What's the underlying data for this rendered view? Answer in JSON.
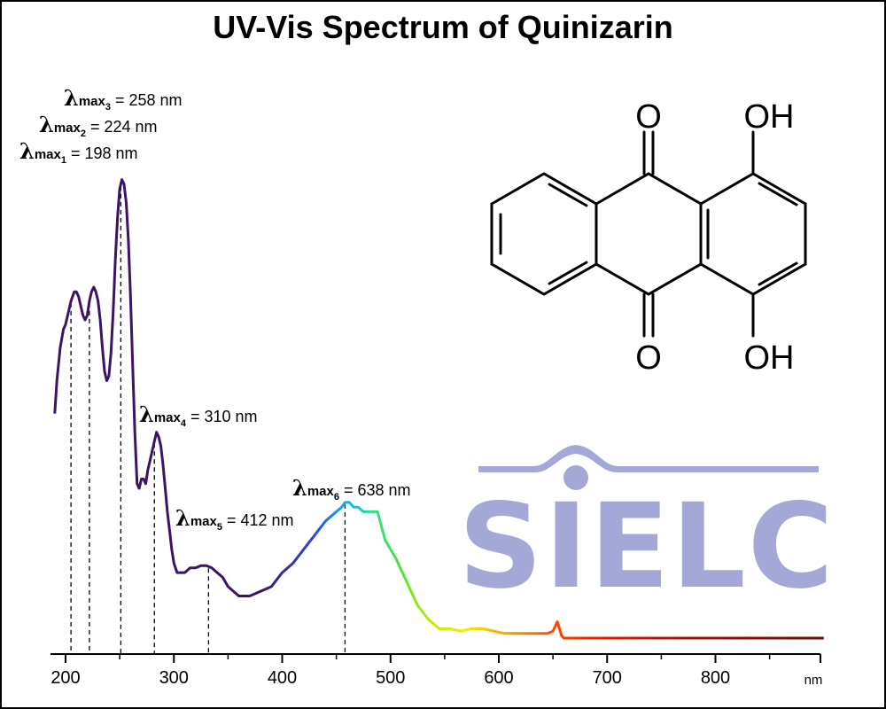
{
  "chart_data": {
    "type": "line",
    "title": "UV-Vis Spectrum of Quinizarin",
    "xlabel": "nm",
    "ylabel": "",
    "xlim": [
      190,
      900
    ],
    "ylim": [
      0,
      1.0
    ],
    "x_ticks": [
      200,
      300,
      400,
      500,
      600,
      700,
      800
    ],
    "y_axis_visible": false,
    "grid": false,
    "line_coloring": "wavelength spectrum gradient (purple in UV, rainbow through visible, dark red beyond 700 nm)",
    "series": [
      {
        "x": [
          190,
          192,
          195,
          198,
          200,
          202,
          205,
          208,
          210,
          212,
          214,
          216,
          218,
          220,
          222,
          224,
          226,
          228,
          230,
          232,
          234,
          236,
          238,
          240,
          242,
          244,
          246,
          248,
          250,
          252,
          254,
          256,
          258,
          260,
          262,
          264,
          266,
          268,
          270,
          272,
          274,
          276,
          278,
          280,
          282,
          284,
          286,
          288,
          290,
          292,
          294,
          296,
          298,
          300,
          303,
          306,
          310,
          315,
          320,
          325,
          330,
          335,
          340,
          345,
          350,
          355,
          360,
          365,
          370,
          380,
          390,
          400,
          410,
          420,
          430,
          440,
          450,
          455,
          458,
          462,
          466,
          470,
          475,
          480,
          485,
          488,
          495,
          505,
          515,
          525,
          535,
          545,
          555,
          565,
          575,
          585,
          595,
          605,
          615,
          625,
          635,
          645,
          650,
          652,
          654,
          656,
          658,
          660,
          665,
          675,
          700,
          725,
          750,
          775,
          800,
          825,
          850,
          875,
          900
        ],
        "y": [
          0.48,
          0.55,
          0.62,
          0.66,
          0.67,
          0.69,
          0.72,
          0.74,
          0.74,
          0.73,
          0.71,
          0.69,
          0.68,
          0.69,
          0.72,
          0.74,
          0.75,
          0.74,
          0.72,
          0.68,
          0.62,
          0.57,
          0.55,
          0.56,
          0.61,
          0.7,
          0.81,
          0.9,
          0.96,
          0.98,
          0.97,
          0.93,
          0.85,
          0.73,
          0.58,
          0.44,
          0.33,
          0.32,
          0.34,
          0.34,
          0.33,
          0.36,
          0.38,
          0.4,
          0.42,
          0.44,
          0.43,
          0.41,
          0.37,
          0.32,
          0.27,
          0.23,
          0.19,
          0.16,
          0.14,
          0.14,
          0.14,
          0.15,
          0.15,
          0.155,
          0.155,
          0.15,
          0.14,
          0.13,
          0.11,
          0.1,
          0.09,
          0.09,
          0.09,
          0.1,
          0.11,
          0.14,
          0.16,
          0.19,
          0.22,
          0.25,
          0.27,
          0.28,
          0.29,
          0.29,
          0.28,
          0.28,
          0.27,
          0.27,
          0.27,
          0.27,
          0.21,
          0.17,
          0.12,
          0.07,
          0.04,
          0.02,
          0.02,
          0.015,
          0.02,
          0.02,
          0.015,
          0.01,
          0.01,
          0.01,
          0.01,
          0.01,
          0.015,
          0.025,
          0.035,
          0.02,
          0.005,
          0.0,
          0.0,
          0.0,
          0.0,
          0.0,
          0.0,
          0.0,
          0.0,
          0.0,
          0.0,
          0.0,
          0.0
        ]
      }
    ],
    "annotations": [
      {
        "label": "λmax1",
        "sub": "1",
        "wavelength": 198,
        "text": " = 198 nm",
        "marker_x": 205
      },
      {
        "label": "λmax2",
        "sub": "2",
        "wavelength": 224,
        "text": " = 224 nm",
        "marker_x": 222
      },
      {
        "label": "λmax3",
        "sub": "3",
        "wavelength": 258,
        "text": " = 258 nm",
        "marker_x": 251
      },
      {
        "label": "λmax4",
        "sub": "4",
        "wavelength": 310,
        "text": " = 310 nm",
        "marker_x": 282
      },
      {
        "label": "λmax5",
        "sub": "5",
        "wavelength": 412,
        "text": " = 412 nm",
        "marker_x": 332
      },
      {
        "label": "λmax6",
        "sub": "6",
        "wavelength": 638,
        "text": " = 638 nm",
        "marker_x": 458
      }
    ]
  },
  "lambda_symbol": "λ",
  "max_text": "max",
  "structure": {
    "atoms": [
      "O",
      "OH",
      "O",
      "OH"
    ]
  },
  "logo": {
    "text": "SIELC",
    "color": "#a3a8d6"
  },
  "colors": {
    "uv_line": "#3b1466",
    "axis": "#000000"
  }
}
